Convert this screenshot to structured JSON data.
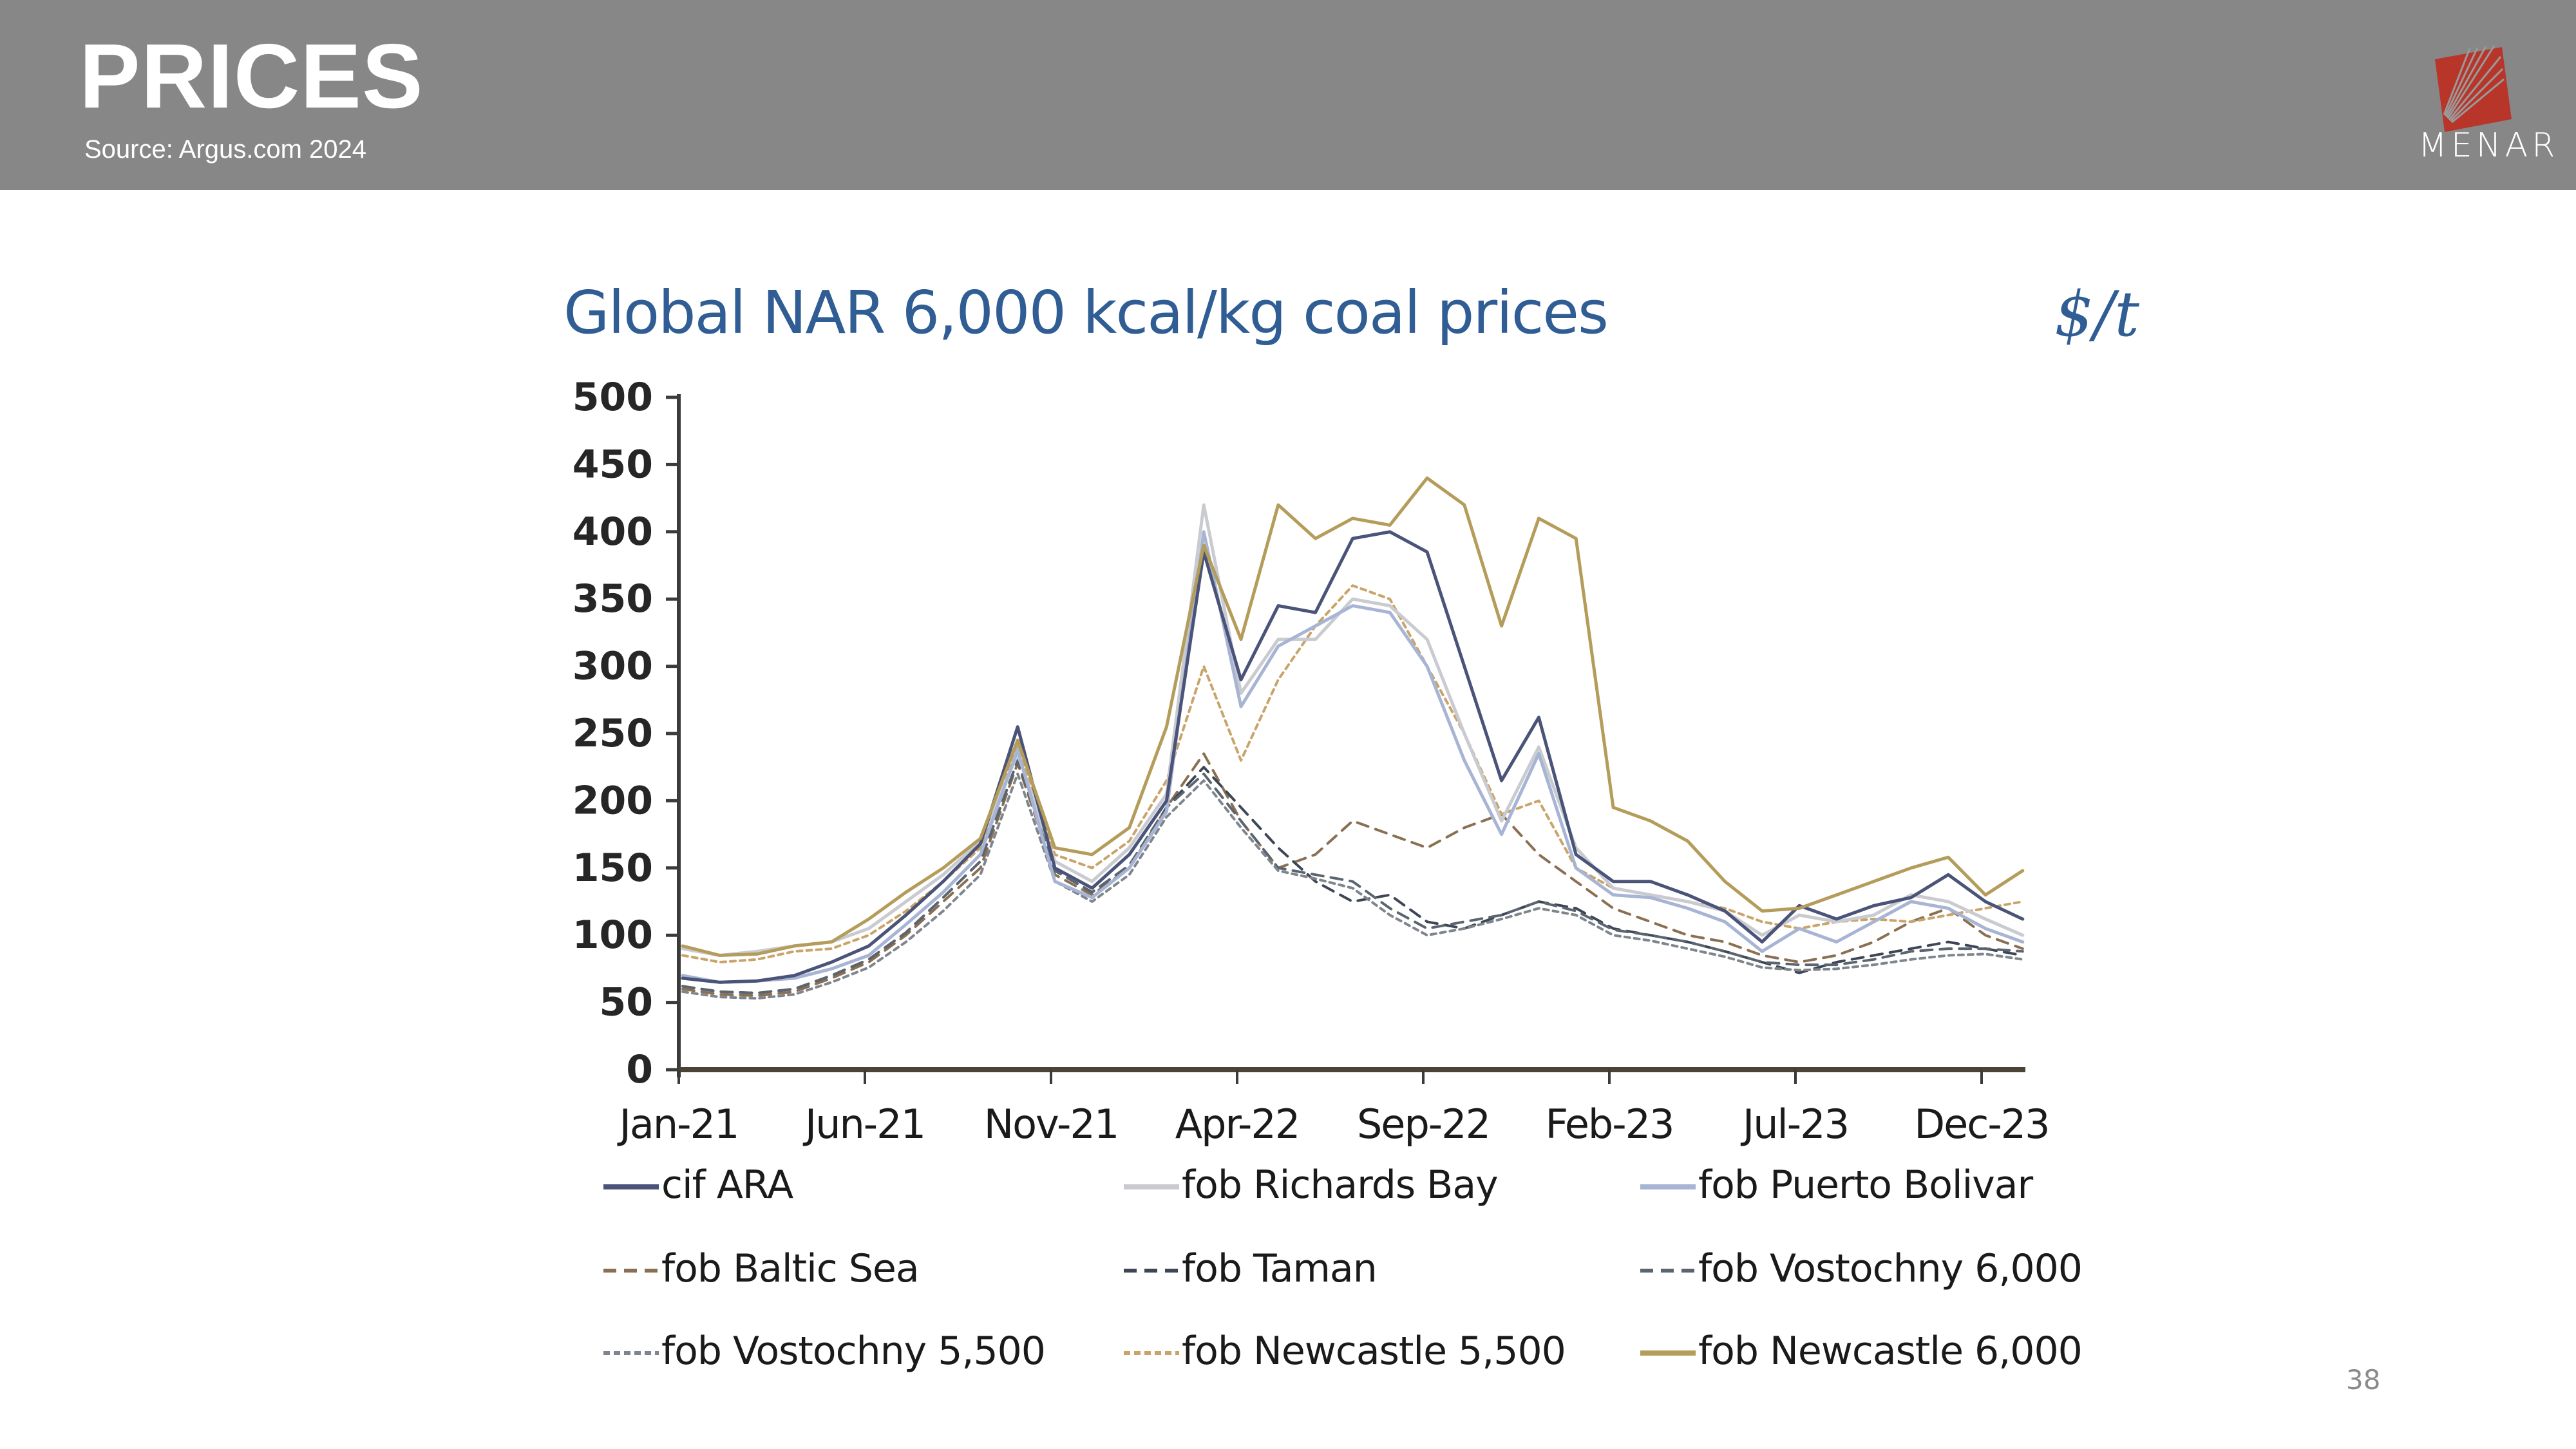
{
  "header": {
    "title": "PRICES",
    "source": "Source: Argus.com 2024",
    "logo_text": "MENAR",
    "logo_icon": "menar-logo-icon",
    "background_color": "#878787",
    "logo_color": "#b8352a"
  },
  "page_number": "38",
  "chart_data": {
    "type": "line",
    "title": "Global NAR 6,000 kcal/kg coal prices",
    "unit_label": "$/t",
    "xlabel": "",
    "ylabel": "",
    "ylim": [
      0,
      500
    ],
    "yticks": [
      "0",
      "50",
      "100",
      "150",
      "200",
      "250",
      "300",
      "350",
      "400",
      "450",
      "500"
    ],
    "xticks": [
      "Jan-21",
      "Jun-21",
      "Nov-21",
      "Apr-22",
      "Sep-22",
      "Feb-23",
      "Jul-23",
      "Dec-23"
    ],
    "xtick_month_index": [
      0,
      5,
      10,
      15,
      20,
      25,
      30,
      35
    ],
    "x_months": [
      "Jan-21",
      "Feb-21",
      "Mar-21",
      "Apr-21",
      "May-21",
      "Jun-21",
      "Jul-21",
      "Aug-21",
      "Sep-21",
      "Oct-21",
      "Nov-21",
      "Dec-21",
      "Jan-22",
      "Feb-22",
      "Mar-22",
      "Apr-22",
      "May-22",
      "Jun-22",
      "Jul-22",
      "Aug-22",
      "Sep-22",
      "Oct-22",
      "Nov-22",
      "Dec-22",
      "Jan-23",
      "Feb-23",
      "Mar-23",
      "Apr-23",
      "May-23",
      "Jun-23",
      "Jul-23",
      "Aug-23",
      "Sep-23",
      "Oct-23",
      "Nov-23",
      "Dec-23",
      "Jan-24"
    ],
    "grid": false,
    "legend_position": "bottom",
    "series": [
      {
        "name": "cif ARA",
        "style": "solid",
        "color": "#4a5378",
        "values": [
          68,
          65,
          66,
          70,
          80,
          92,
          115,
          140,
          168,
          255,
          150,
          135,
          160,
          200,
          385,
          290,
          345,
          340,
          395,
          400,
          385,
          300,
          215,
          262,
          160,
          140,
          140,
          130,
          118,
          95,
          122,
          112,
          122,
          128,
          145,
          125,
          112
        ]
      },
      {
        "name": "fob Richards Bay",
        "style": "solid",
        "color": "#c9cbd1",
        "values": [
          90,
          85,
          88,
          92,
          95,
          105,
          125,
          145,
          170,
          235,
          155,
          140,
          165,
          205,
          420,
          280,
          320,
          320,
          350,
          345,
          320,
          250,
          185,
          240,
          165,
          135,
          130,
          125,
          118,
          100,
          115,
          110,
          115,
          130,
          125,
          112,
          100
        ]
      },
      {
        "name": "fob Puerto Bolivar",
        "style": "solid",
        "color": "#a7b4d4",
        "values": [
          70,
          65,
          66,
          68,
          75,
          85,
          108,
          132,
          160,
          238,
          140,
          128,
          150,
          192,
          400,
          270,
          315,
          330,
          345,
          340,
          300,
          230,
          175,
          235,
          150,
          130,
          128,
          120,
          110,
          88,
          105,
          95,
          110,
          125,
          120,
          105,
          95
        ]
      },
      {
        "name": "fob Baltic Sea",
        "style": "dashed",
        "color": "#8a6f52",
        "values": [
          60,
          56,
          55,
          58,
          68,
          80,
          100,
          125,
          150,
          228,
          145,
          130,
          150,
          195,
          235,
          185,
          150,
          160,
          185,
          175,
          165,
          180,
          190,
          160,
          140,
          120,
          110,
          100,
          95,
          85,
          80,
          85,
          95,
          110,
          120,
          100,
          90
        ]
      },
      {
        "name": "fob Taman",
        "style": "dashed",
        "color": "#3e4656",
        "values": [
          62,
          58,
          57,
          60,
          70,
          82,
          102,
          128,
          155,
          230,
          148,
          132,
          152,
          195,
          225,
          195,
          165,
          140,
          125,
          130,
          110,
          105,
          115,
          125,
          120,
          105,
          100,
          95,
          88,
          80,
          72,
          80,
          85,
          90,
          95,
          90,
          85
        ]
      },
      {
        "name": "fob Vostochny 6,000",
        "style": "dashed",
        "color": "#5a6570",
        "values": [
          62,
          58,
          57,
          60,
          70,
          82,
          102,
          128,
          155,
          230,
          148,
          132,
          152,
          195,
          220,
          185,
          150,
          145,
          140,
          120,
          105,
          110,
          115,
          125,
          118,
          104,
          100,
          95,
          88,
          80,
          78,
          78,
          82,
          88,
          90,
          90,
          88
        ]
      },
      {
        "name": "fob Vostochny 5,500",
        "style": "dotted",
        "color": "#7e858c",
        "values": [
          58,
          54,
          53,
          56,
          65,
          76,
          95,
          118,
          145,
          220,
          140,
          125,
          145,
          188,
          215,
          180,
          148,
          142,
          135,
          115,
          100,
          105,
          112,
          120,
          115,
          100,
          96,
          90,
          84,
          76,
          74,
          75,
          78,
          82,
          85,
          86,
          82
        ]
      },
      {
        "name": "fob Newcastle 5,500",
        "style": "dotted",
        "color": "#c9a46a",
        "values": [
          85,
          80,
          82,
          88,
          90,
          100,
          118,
          140,
          165,
          240,
          160,
          150,
          170,
          215,
          300,
          230,
          290,
          330,
          360,
          350,
          300,
          250,
          190,
          200,
          150,
          135,
          130,
          125,
          120,
          110,
          105,
          110,
          112,
          110,
          115,
          120,
          125
        ]
      },
      {
        "name": "fob Newcastle 6,000",
        "style": "solid",
        "color": "#b49c5a",
        "values": [
          92,
          85,
          86,
          92,
          95,
          112,
          132,
          150,
          172,
          245,
          165,
          160,
          180,
          255,
          390,
          320,
          420,
          395,
          410,
          405,
          440,
          420,
          330,
          410,
          395,
          195,
          185,
          170,
          140,
          118,
          120,
          130,
          140,
          150,
          158,
          130,
          148
        ]
      }
    ]
  }
}
